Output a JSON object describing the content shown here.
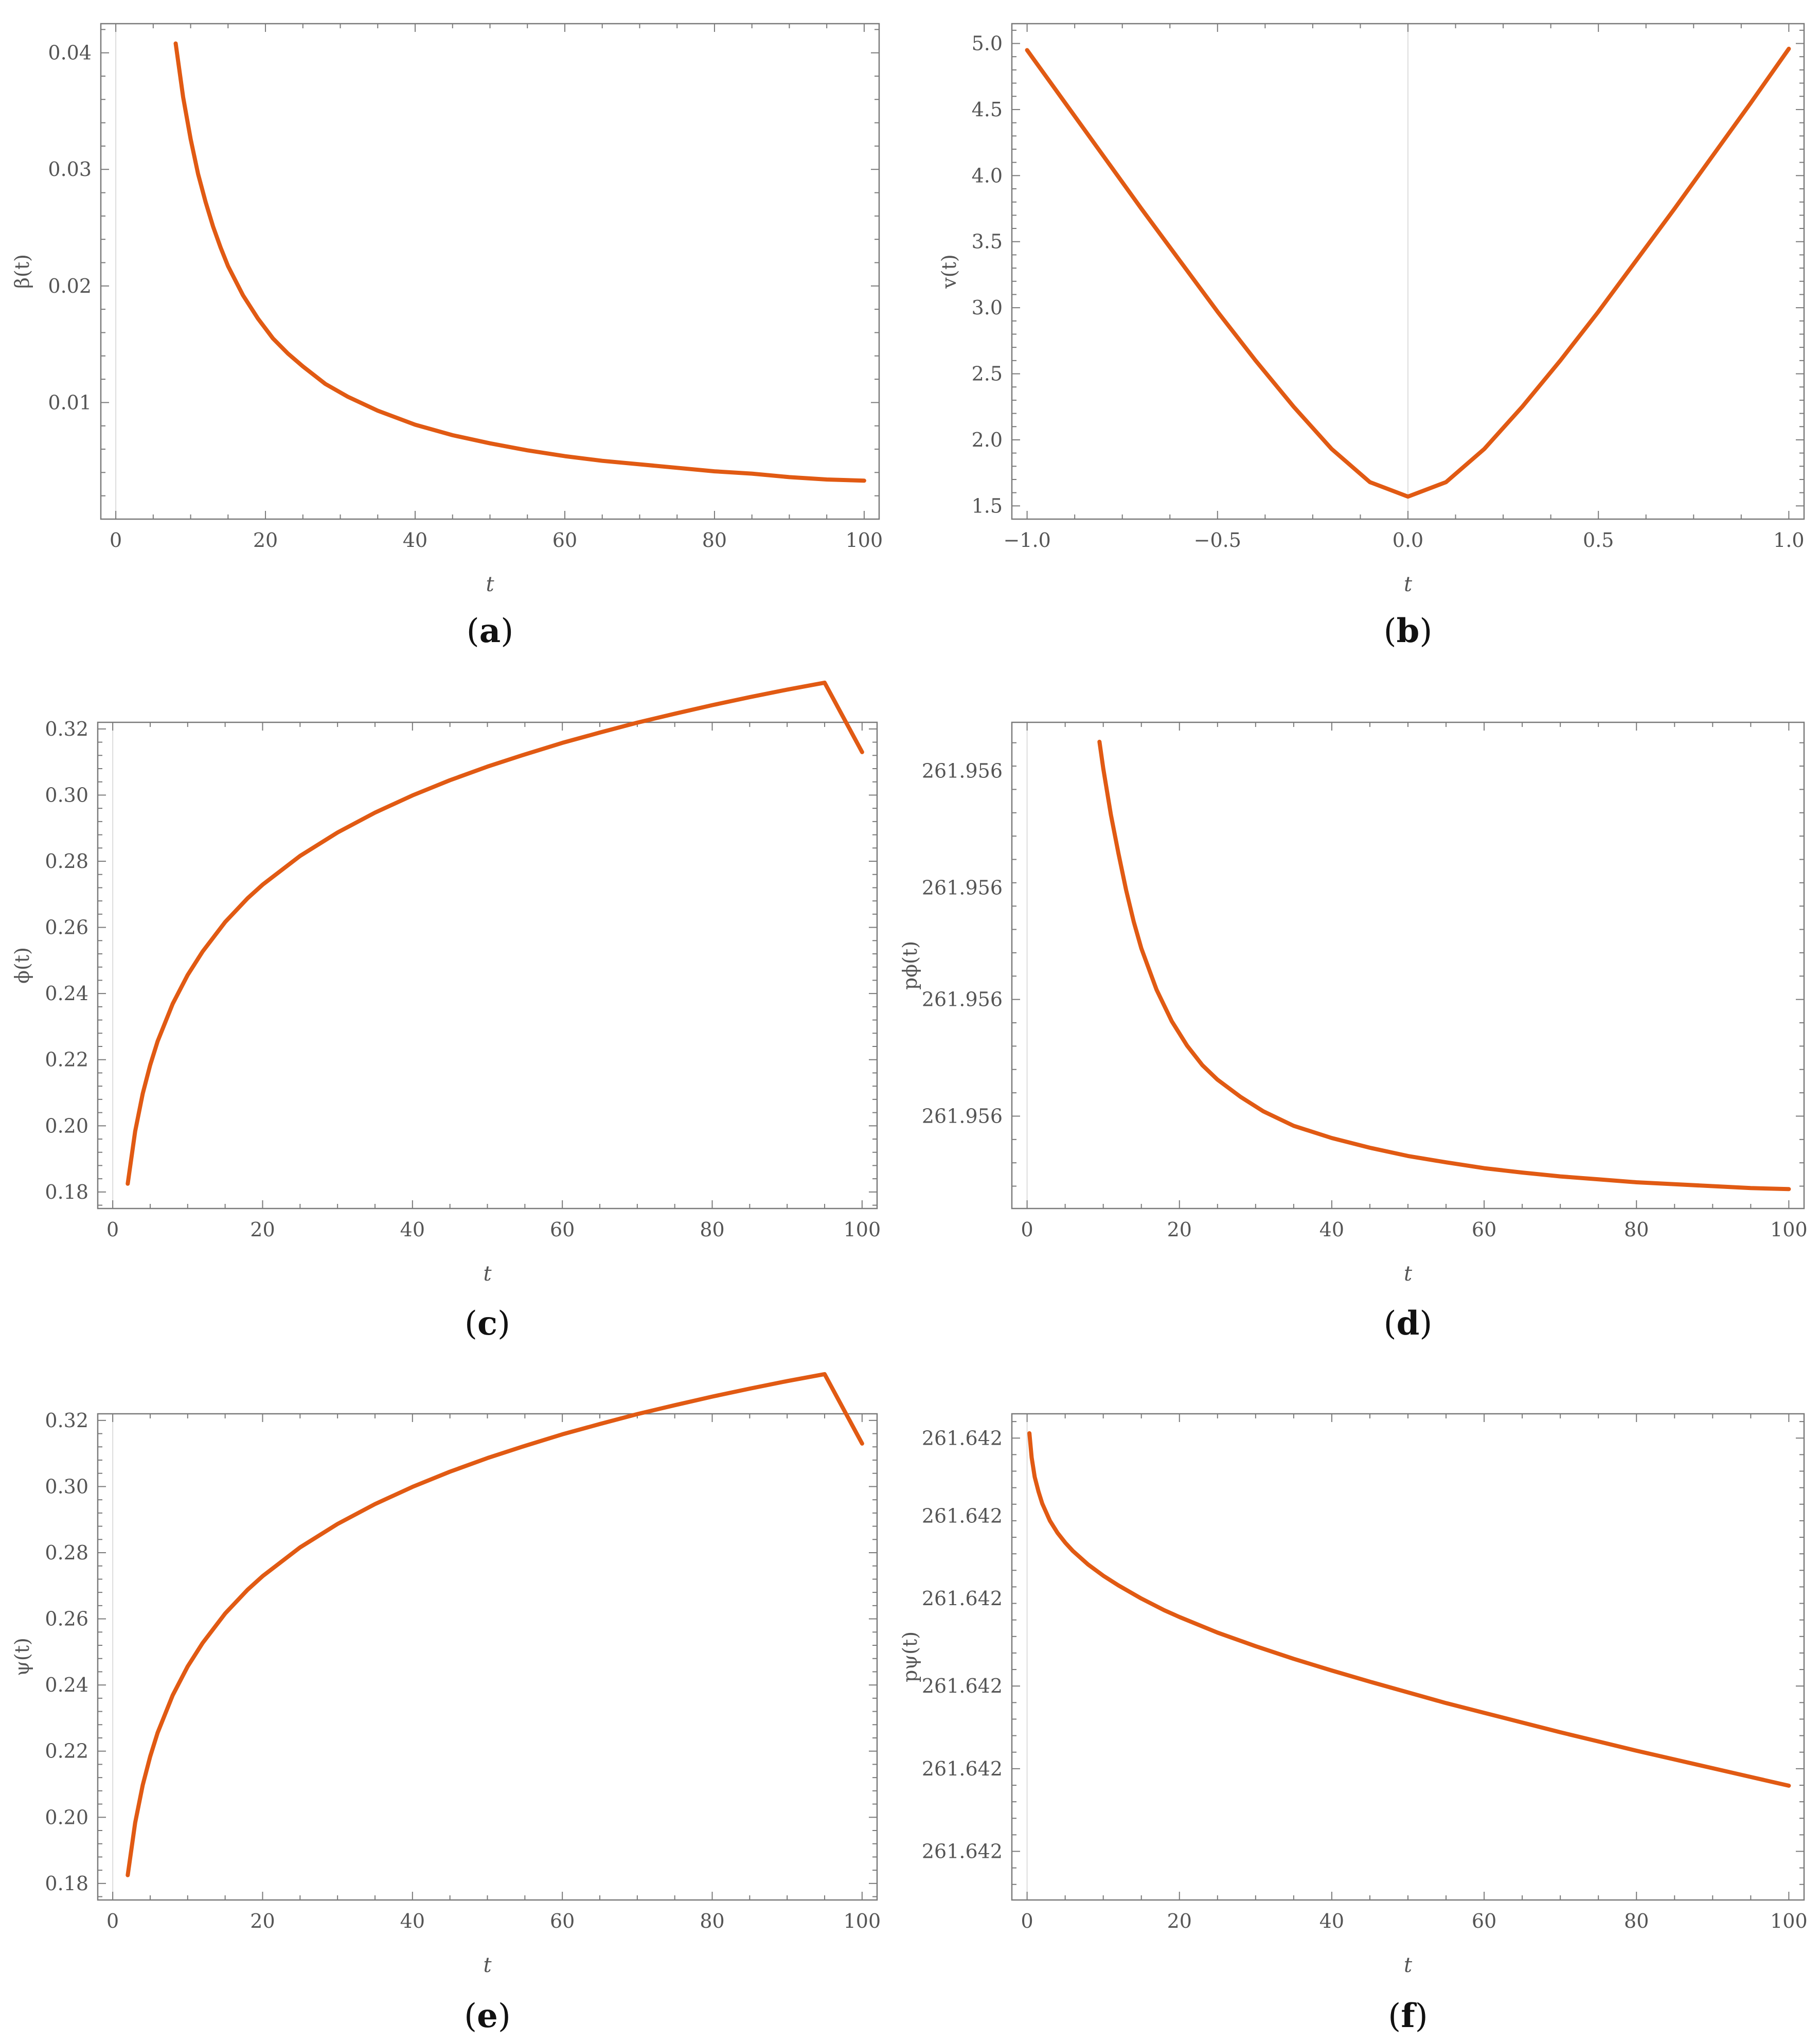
{
  "colors": {
    "series": "#e15a13",
    "frame": "#7a7a7a",
    "text": "#555555"
  },
  "chart_data": [
    {
      "id": "a",
      "type": "line",
      "caption": "a",
      "xlabel": "t",
      "ylabel": "β(t)",
      "xlim": [
        -2,
        102
      ],
      "ylim": [
        0.0,
        0.0425
      ],
      "xticks": [
        0,
        20,
        40,
        60,
        80,
        100
      ],
      "xtick_labels": [
        "0",
        "20",
        "40",
        "60",
        "80",
        "100"
      ],
      "yticks": [
        0.01,
        0.02,
        0.03,
        0.04
      ],
      "ytick_labels": [
        "0.01",
        "0.02",
        "0.03",
        "0.04"
      ],
      "x_zero_line": true,
      "series": [
        {
          "x": [
            8,
            9,
            10,
            11,
            12,
            13,
            14,
            15,
            17,
            19,
            21,
            23,
            25,
            28,
            31,
            35,
            40,
            45,
            50,
            55,
            60,
            65,
            70,
            75,
            80,
            85,
            90,
            95,
            100
          ],
          "y": [
            0.0408,
            0.0362,
            0.0326,
            0.0296,
            0.0272,
            0.0251,
            0.0233,
            0.0217,
            0.0192,
            0.0172,
            0.0155,
            0.0142,
            0.0131,
            0.0116,
            0.0105,
            0.0093,
            0.0081,
            0.0072,
            0.0065,
            0.0059,
            0.0054,
            0.005,
            0.0047,
            0.0044,
            0.0041,
            0.0039,
            0.0036,
            0.0034,
            0.0033
          ]
        }
      ]
    },
    {
      "id": "b",
      "type": "line",
      "caption": "b",
      "xlabel": "t",
      "ylabel": "v(t)",
      "xlim": [
        -1.04,
        1.04
      ],
      "ylim": [
        1.4,
        5.15
      ],
      "xticks": [
        -1.0,
        -0.5,
        0.0,
        0.5,
        1.0
      ],
      "xtick_labels": [
        "−1.0",
        "−0.5",
        "0.0",
        "0.5",
        "1.0"
      ],
      "yticks": [
        1.5,
        2.0,
        2.5,
        3.0,
        3.5,
        4.0,
        4.5,
        5.0
      ],
      "ytick_labels": [
        "1.5",
        "2.0",
        "2.5",
        "3.0",
        "3.5",
        "4.0",
        "4.5",
        "5.0"
      ],
      "x_zero_line": true,
      "series": [
        {
          "x": [
            -1.0,
            -0.9,
            -0.8,
            -0.7,
            -0.6,
            -0.5,
            -0.4,
            -0.3,
            -0.2,
            -0.1,
            0.0,
            0.1,
            0.2,
            0.3,
            0.4,
            0.5,
            0.6,
            0.7,
            0.8,
            0.9,
            1.0
          ],
          "y": [
            4.95,
            4.55,
            4.15,
            3.75,
            3.36,
            2.97,
            2.6,
            2.25,
            1.93,
            1.68,
            1.57,
            1.68,
            1.93,
            2.25,
            2.6,
            2.97,
            3.36,
            3.75,
            4.15,
            4.55,
            4.96
          ]
        }
      ]
    },
    {
      "id": "c",
      "type": "line",
      "caption": "c",
      "xlabel": "t",
      "ylabel": "ϕ(t)",
      "xlim": [
        -2,
        102
      ],
      "ylim": [
        0.175,
        0.322
      ],
      "xticks": [
        0,
        20,
        40,
        60,
        80,
        100
      ],
      "xtick_labels": [
        "0",
        "20",
        "40",
        "60",
        "80",
        "100"
      ],
      "yticks": [
        0.18,
        0.2,
        0.22,
        0.24,
        0.26,
        0.28,
        0.3,
        0.32
      ],
      "ytick_labels": [
        "0.18",
        "0.20",
        "0.22",
        "0.24",
        "0.26",
        "0.28",
        "0.30",
        "0.32"
      ],
      "x_zero_line": true,
      "series": [
        {
          "x": [
            2,
            3,
            4,
            5,
            6,
            8,
            10,
            12,
            15,
            18,
            20,
            25,
            30,
            35,
            40,
            45,
            50,
            55,
            60,
            65,
            70,
            75,
            80,
            85,
            90,
            95,
            100
          ],
          "y": [
            0.1825,
            0.1984,
            0.2097,
            0.2184,
            0.2256,
            0.2369,
            0.2456,
            0.2527,
            0.2616,
            0.2688,
            0.2729,
            0.2816,
            0.2887,
            0.2947,
            0.2999,
            0.3045,
            0.3086,
            0.3123,
            0.3158,
            0.3189,
            0.3219,
            0.3246,
            0.3272,
            0.3296,
            0.3319,
            0.334,
            0.313
          ]
        }
      ]
    },
    {
      "id": "d",
      "type": "line",
      "caption": "d",
      "xlabel": "t",
      "ylabel": "pϕ(t)",
      "xlim": [
        -2,
        102
      ],
      "ylim": [
        0.0,
        1.0
      ],
      "xticks": [
        0,
        20,
        40,
        60,
        80,
        100
      ],
      "xtick_labels": [
        "0",
        "20",
        "40",
        "60",
        "80",
        "100"
      ],
      "yticks": [
        0.19,
        0.43,
        0.66,
        0.9
      ],
      "ytick_labels": [
        "261.956",
        "261.956",
        "261.956",
        "261.956"
      ],
      "x_zero_line": true,
      "series": [
        {
          "x": [
            9.5,
            10,
            11,
            12,
            13,
            14,
            15,
            17,
            19,
            21,
            23,
            25,
            28,
            31,
            35,
            40,
            45,
            50,
            55,
            60,
            65,
            70,
            75,
            80,
            85,
            90,
            95,
            100
          ],
          "y": [
            0.96,
            0.905,
            0.81,
            0.73,
            0.655,
            0.59,
            0.535,
            0.45,
            0.385,
            0.335,
            0.295,
            0.265,
            0.23,
            0.2,
            0.17,
            0.145,
            0.125,
            0.108,
            0.095,
            0.083,
            0.074,
            0.066,
            0.06,
            0.054,
            0.05,
            0.046,
            0.042,
            0.04
          ]
        }
      ]
    },
    {
      "id": "e",
      "type": "line",
      "caption": "e",
      "xlabel": "t",
      "ylabel": "ψ(t)",
      "xlim": [
        -2,
        102
      ],
      "ylim": [
        0.175,
        0.322
      ],
      "xticks": [
        0,
        20,
        40,
        60,
        80,
        100
      ],
      "xtick_labels": [
        "0",
        "20",
        "40",
        "60",
        "80",
        "100"
      ],
      "yticks": [
        0.18,
        0.2,
        0.22,
        0.24,
        0.26,
        0.28,
        0.3,
        0.32
      ],
      "ytick_labels": [
        "0.18",
        "0.20",
        "0.22",
        "0.24",
        "0.26",
        "0.28",
        "0.30",
        "0.32"
      ],
      "x_zero_line": true,
      "series": [
        {
          "x": [
            2,
            3,
            4,
            5,
            6,
            8,
            10,
            12,
            15,
            18,
            20,
            25,
            30,
            35,
            40,
            45,
            50,
            55,
            60,
            65,
            70,
            75,
            80,
            85,
            90,
            95,
            100
          ],
          "y": [
            0.1825,
            0.1984,
            0.2097,
            0.2184,
            0.2256,
            0.2369,
            0.2456,
            0.2527,
            0.2616,
            0.2688,
            0.2729,
            0.2816,
            0.2887,
            0.2947,
            0.2999,
            0.3045,
            0.3086,
            0.3123,
            0.3158,
            0.3189,
            0.3219,
            0.3246,
            0.3272,
            0.3296,
            0.3319,
            0.334,
            0.313
          ]
        }
      ]
    },
    {
      "id": "f",
      "type": "line",
      "caption": "f",
      "xlabel": "t",
      "ylabel": "pψ(t)",
      "xlim": [
        -2,
        102
      ],
      "ylim": [
        0.0,
        1.0
      ],
      "xticks": [
        0,
        20,
        40,
        60,
        80,
        100
      ],
      "xtick_labels": [
        "0",
        "20",
        "40",
        "60",
        "80",
        "100"
      ],
      "yticks": [
        0.1,
        0.27,
        0.44,
        0.62,
        0.79,
        0.95
      ],
      "ytick_labels": [
        "261.642",
        "261.642",
        "261.642",
        "261.642",
        "261.642",
        "261.642"
      ],
      "x_zero_line": true,
      "series": [
        {
          "x": [
            0.3,
            0.6,
            1,
            1.5,
            2,
            3,
            4,
            5,
            6,
            8,
            10,
            12,
            15,
            18,
            20,
            25,
            30,
            35,
            40,
            45,
            50,
            55,
            60,
            65,
            70,
            75,
            80,
            85,
            90,
            95,
            100
          ],
          "y": [
            0.96,
            0.91,
            0.87,
            0.84,
            0.815,
            0.78,
            0.755,
            0.735,
            0.718,
            0.69,
            0.667,
            0.647,
            0.62,
            0.596,
            0.582,
            0.55,
            0.522,
            0.496,
            0.472,
            0.449,
            0.427,
            0.405,
            0.385,
            0.365,
            0.345,
            0.326,
            0.307,
            0.289,
            0.271,
            0.253,
            0.235
          ]
        }
      ]
    }
  ]
}
